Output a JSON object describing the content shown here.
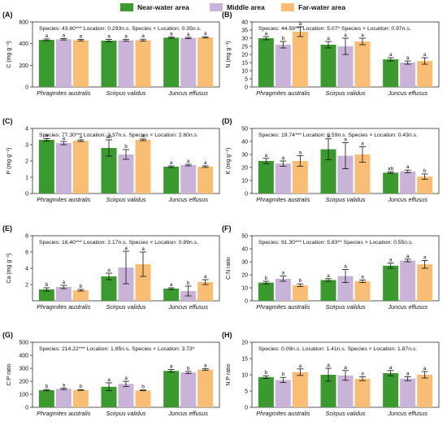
{
  "legend": {
    "items": [
      {
        "label": "Near-water area",
        "color": "#3a9a2e"
      },
      {
        "label": "Middle area",
        "color": "#c9b3d9"
      },
      {
        "label": "Far-water area",
        "color": "#f9be74"
      }
    ]
  },
  "colors": {
    "near": "#3a9a2e",
    "middle": "#c9b3d9",
    "far": "#f9be74",
    "axis": "#333333"
  },
  "chart_data": [
    {
      "panel": "(A)",
      "type": "bar",
      "ylabel": "C (mg g⁻¹)",
      "unit_sup": "-1",
      "ylim": [
        0,
        600
      ],
      "yticks": [
        0,
        200,
        400,
        600
      ],
      "stats": "Species: 43.60*** Location: 0.293n.s. Species × Location: 0.35n.s.",
      "categories": [
        "Phragmites australis",
        "Scirpus validus",
        "Juncus effusus"
      ],
      "series": [
        {
          "name": "Near-water area",
          "values": [
            435,
            428,
            455
          ],
          "errors": [
            8,
            10,
            7
          ],
          "letters": [
            "a",
            "a",
            "a"
          ]
        },
        {
          "name": "Middle area",
          "values": [
            440,
            430,
            452
          ],
          "errors": [
            6,
            8,
            6
          ],
          "letters": [
            "a",
            "a",
            "a"
          ]
        },
        {
          "name": "Far-water area",
          "values": [
            432,
            432,
            458
          ],
          "errors": [
            7,
            9,
            6
          ],
          "letters": [
            "a",
            "a",
            "a"
          ]
        }
      ]
    },
    {
      "panel": "(B)",
      "type": "bar",
      "ylabel": "N (mg g⁻¹)",
      "ylim": [
        0,
        40
      ],
      "yticks": [
        0,
        5,
        10,
        15,
        20,
        25,
        30,
        35,
        40
      ],
      "stats": "Species: 44.59*** Location: 5.07* Species × Location: 0.97n.s.",
      "categories": [
        "Phragmites australis",
        "Scirpus validus",
        "Juncus effusus"
      ],
      "series": [
        {
          "name": "Near-water area",
          "values": [
            30,
            26,
            17
          ],
          "errors": [
            1,
            2,
            1
          ],
          "letters": [
            "a",
            "a",
            "a"
          ]
        },
        {
          "name": "Middle area",
          "values": [
            26,
            25,
            15
          ],
          "errors": [
            2,
            5,
            1
          ],
          "letters": [
            "b",
            "a",
            "a"
          ]
        },
        {
          "name": "Far-water area",
          "values": [
            34,
            28,
            16
          ],
          "errors": [
            3,
            2,
            2
          ],
          "letters": [
            "a",
            "a",
            "a"
          ]
        }
      ]
    },
    {
      "panel": "(C)",
      "type": "bar",
      "ylabel": "P (mg g⁻¹)",
      "ylim": [
        0,
        4
      ],
      "yticks": [
        0,
        1,
        2,
        3,
        4
      ],
      "stats": "Species: 77.30*** Location: 3.37n.s. Species × Location: 2.60n.s.",
      "categories": [
        "Phragmites australis",
        "Scirpus validus",
        "Juncus effusus"
      ],
      "series": [
        {
          "name": "Near-water area",
          "values": [
            3.3,
            2.8,
            1.65
          ],
          "errors": [
            0.08,
            0.5,
            0.05
          ],
          "letters": [
            "a",
            "ab",
            "a"
          ]
        },
        {
          "name": "Middle area",
          "values": [
            3.1,
            2.4,
            1.75
          ],
          "errors": [
            0.1,
            0.3,
            0.05
          ],
          "letters": [
            "a",
            "b",
            "a"
          ]
        },
        {
          "name": "Far-water area",
          "values": [
            3.25,
            3.3,
            1.65
          ],
          "errors": [
            0.05,
            0.05,
            0.05
          ],
          "letters": [
            "a",
            "a",
            "a"
          ]
        }
      ]
    },
    {
      "panel": "(D)",
      "type": "bar",
      "ylabel": "K (mg g⁻¹)",
      "ylim": [
        0,
        50
      ],
      "yticks": [
        0,
        10,
        20,
        30,
        40,
        50
      ],
      "stats": "Species: 19.74*** Location: 0.59n.s. Species × Location: 0.43n.s.",
      "categories": [
        "Phragmites australis",
        "Scirpus validus",
        "Juncus effusus"
      ],
      "series": [
        {
          "name": "Near-water area",
          "values": [
            25,
            34,
            16
          ],
          "errors": [
            2,
            8,
            0.5
          ],
          "letters": [
            "a",
            "a",
            "ab"
          ]
        },
        {
          "name": "Middle area",
          "values": [
            23,
            29,
            17
          ],
          "errors": [
            2,
            10,
            1
          ],
          "letters": [
            "a",
            "a",
            "a"
          ]
        },
        {
          "name": "Far-water area",
          "values": [
            25,
            30,
            13
          ],
          "errors": [
            4,
            6,
            2
          ],
          "letters": [
            "a",
            "a",
            "b"
          ]
        }
      ]
    },
    {
      "panel": "(E)",
      "type": "bar",
      "ylabel": "Ca (mg g⁻¹)",
      "ylim": [
        0,
        8
      ],
      "yticks": [
        2,
        4,
        6,
        8
      ],
      "stats": "Species: 18.40*** Location: 2.17n.s. Species × Location: 0.89n.s.",
      "categories": [
        "Phragmites australis",
        "Scirpus validus",
        "Juncus effusus"
      ],
      "series": [
        {
          "name": "Near-water area",
          "values": [
            1.4,
            3.0,
            1.5
          ],
          "errors": [
            0.2,
            0.4,
            0.1
          ],
          "letters": [
            "b",
            "a",
            "a"
          ]
        },
        {
          "name": "Middle area",
          "values": [
            1.7,
            4.1,
            1.2
          ],
          "errors": [
            0.2,
            2.0,
            0.6
          ],
          "letters": [
            "a",
            "a",
            "b"
          ]
        },
        {
          "name": "Far-water area",
          "values": [
            1.3,
            4.5,
            2.3
          ],
          "errors": [
            0.1,
            1.5,
            0.3
          ],
          "letters": [
            "b",
            "a",
            "a"
          ]
        }
      ]
    },
    {
      "panel": "(F)",
      "type": "bar",
      "ylabel": "C:N ratio",
      "ylim": [
        0,
        50
      ],
      "yticks": [
        0,
        10,
        20,
        30,
        40,
        50
      ],
      "stats": "Species: 91.30*** Location: 5.83** Species × Location: 0.55n.s.",
      "categories": [
        "Phragmites australis",
        "Scirpus validus",
        "Juncus effusus"
      ],
      "series": [
        {
          "name": "Near-water area",
          "values": [
            14,
            16,
            27
          ],
          "errors": [
            1,
            1,
            2
          ],
          "letters": [
            "b",
            "a",
            "a"
          ]
        },
        {
          "name": "Middle area",
          "values": [
            17,
            19,
            31
          ],
          "errors": [
            2,
            5,
            1
          ],
          "letters": [
            "a",
            "a",
            "a"
          ]
        },
        {
          "name": "Far-water area",
          "values": [
            12,
            15,
            28
          ],
          "errors": [
            1,
            1,
            3
          ],
          "letters": [
            "b",
            "a",
            "a"
          ]
        }
      ]
    },
    {
      "panel": "(G)",
      "type": "bar",
      "ylabel": "C:P ratio",
      "ylim": [
        0,
        500
      ],
      "yticks": [
        0,
        100,
        200,
        300,
        400,
        500
      ],
      "stats": "Species: 214.22*** Location: 1.85n.s. Species × Location: 3.73*",
      "categories": [
        "Phragmites australis",
        "Scirpus validus",
        "Juncus effusus"
      ],
      "series": [
        {
          "name": "Near-water area",
          "values": [
            132,
            158,
            280
          ],
          "errors": [
            5,
            30,
            10
          ],
          "letters": [
            "b",
            "a",
            "a"
          ]
        },
        {
          "name": "Middle area",
          "values": [
            142,
            180,
            268
          ],
          "errors": [
            6,
            20,
            8
          ],
          "letters": [
            "a",
            "a",
            "b"
          ]
        },
        {
          "name": "Far-water area",
          "values": [
            133,
            130,
            290
          ],
          "errors": [
            3,
            3,
            6
          ],
          "letters": [
            "b",
            "b",
            "a"
          ]
        }
      ]
    },
    {
      "panel": "(H)",
      "type": "bar",
      "ylabel": "N:P ratio",
      "ylim": [
        0,
        20
      ],
      "yticks": [
        0,
        5,
        10,
        15,
        20
      ],
      "stats": "Species: 0.09n.s. Location: 1.41n.s. Species × Location: 1.87n.s.",
      "categories": [
        "Phragmites australis",
        "Scirpus validus",
        "Juncus effusus"
      ],
      "series": [
        {
          "name": "Near-water area",
          "values": [
            9.3,
            10,
            10.5
          ],
          "errors": [
            0.4,
            2,
            0.8
          ],
          "letters": [
            "b",
            "a",
            "a"
          ]
        },
        {
          "name": "Middle area",
          "values": [
            8.4,
            9.8,
            8.8
          ],
          "errors": [
            0.8,
            1.5,
            0.6
          ],
          "letters": [
            "b",
            "a",
            "a"
          ]
        },
        {
          "name": "Far-water area",
          "values": [
            10.8,
            8.8,
            10
          ],
          "errors": [
            1,
            0.6,
            1
          ],
          "letters": [
            "a",
            "a",
            "a"
          ]
        }
      ]
    }
  ]
}
